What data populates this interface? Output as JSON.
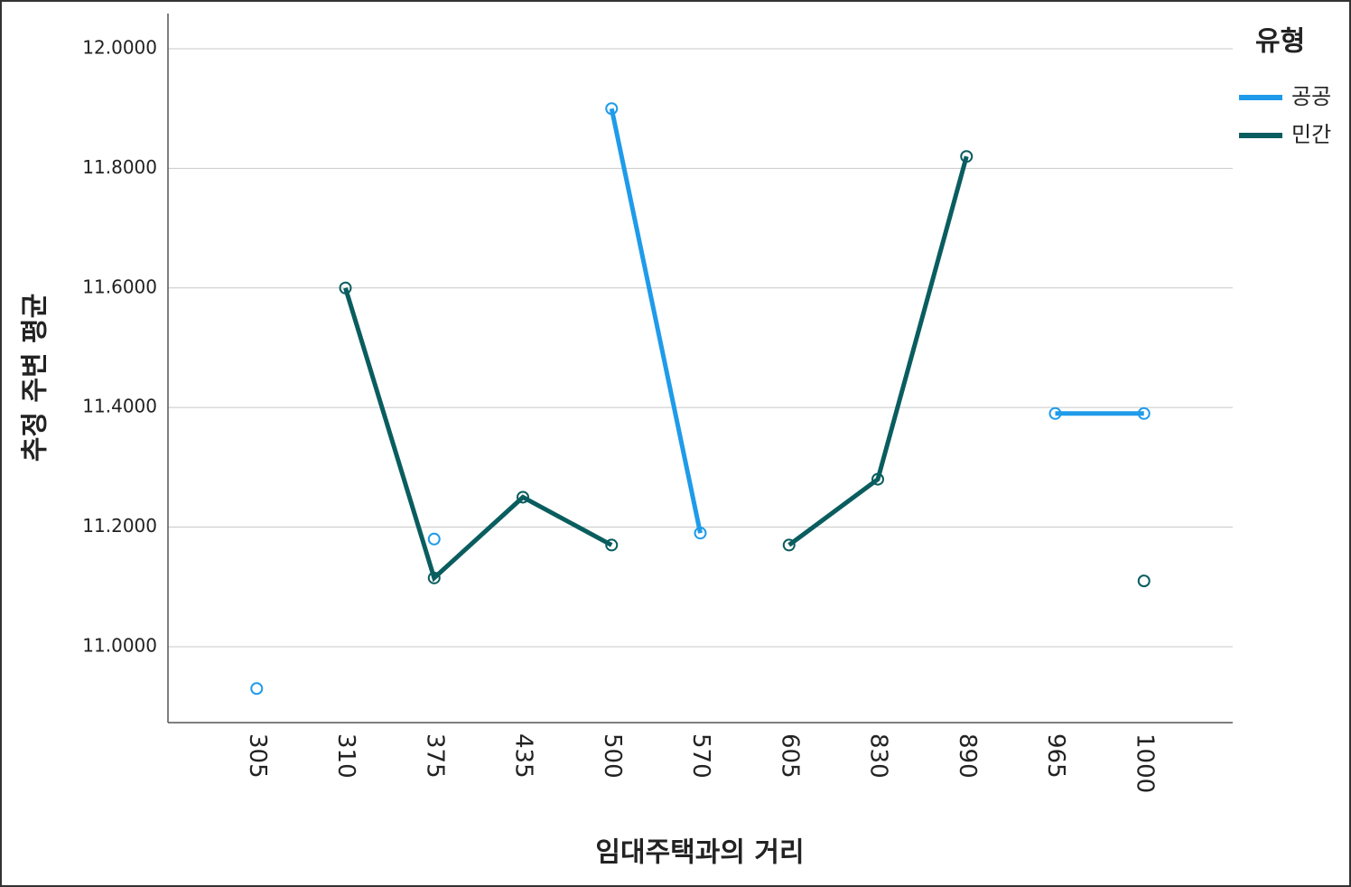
{
  "chart_data": {
    "type": "line",
    "x_label": "임대주택과의 거리",
    "y_label": "추정 주변 평균",
    "legend_title": "유형",
    "legend": "right",
    "grid": true,
    "categories": [
      "305",
      "310",
      "375",
      "435",
      "500",
      "570",
      "605",
      "830",
      "890",
      "965",
      "1000"
    ],
    "series": [
      {
        "name": "공공",
        "color": "#1f9bea",
        "values": [
          10.93,
          null,
          11.18,
          null,
          11.9,
          11.19,
          null,
          null,
          null,
          11.39,
          11.39
        ]
      },
      {
        "name": "민간",
        "color": "#0a5d5f",
        "values": [
          null,
          11.6,
          11.115,
          11.25,
          11.17,
          null,
          11.17,
          11.28,
          11.82,
          null,
          11.11
        ]
      }
    ],
    "ylim": [
      10.873,
      12.059
    ],
    "yticks": [
      {
        "value": 11,
        "label": "11.0000"
      },
      {
        "value": 11.2,
        "label": "11.2000"
      },
      {
        "value": 11.4,
        "label": "11.4000"
      },
      {
        "value": 11.6,
        "label": "11.6000"
      },
      {
        "value": 11.8,
        "label": "11.8000"
      },
      {
        "value": 12,
        "label": "12.0000"
      }
    ]
  }
}
